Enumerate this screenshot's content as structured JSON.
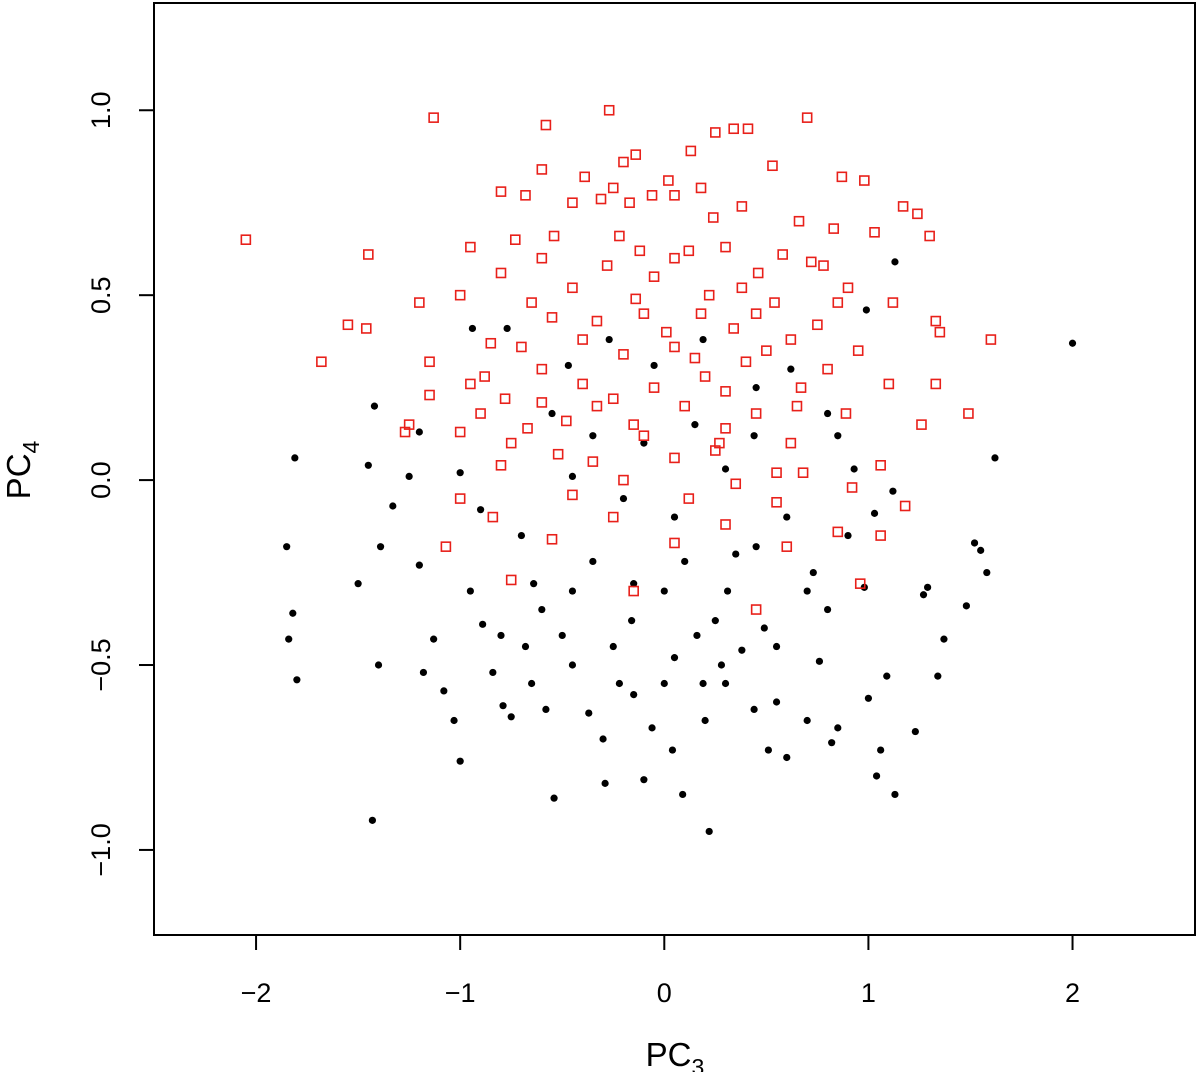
{
  "chart_data": {
    "type": "scatter",
    "title": "",
    "xlabel": {
      "base": "PC",
      "sub": "3"
    },
    "ylabel": {
      "base": "PC",
      "sub": "4"
    },
    "xlim": [
      -2.5,
      2.6
    ],
    "ylim": [
      -1.23,
      1.29
    ],
    "x_ticks": [
      -2,
      -1,
      0,
      1,
      2
    ],
    "x_tick_labels": [
      "−2",
      "−1",
      "0",
      "1",
      "2"
    ],
    "y_ticks": [
      -1.0,
      -0.5,
      0.0,
      0.5,
      1.0
    ],
    "y_tick_labels": [
      "−1.0",
      "−0.5",
      "0.0",
      "0.5",
      "1.0"
    ],
    "grid": false,
    "legend": "none",
    "series": [
      {
        "marker": "filled-circle",
        "color": "#000000",
        "points": [
          [
            2.0,
            0.37
          ],
          [
            1.13,
            0.59
          ],
          [
            1.62,
            0.06
          ],
          [
            1.58,
            -0.25
          ],
          [
            1.55,
            -0.19
          ],
          [
            1.52,
            -0.17
          ],
          [
            1.48,
            -0.34
          ],
          [
            1.37,
            -0.43
          ],
          [
            1.34,
            -0.53
          ],
          [
            1.29,
            -0.29
          ],
          [
            1.27,
            -0.31
          ],
          [
            1.23,
            -0.68
          ],
          [
            1.13,
            -0.85
          ],
          [
            1.09,
            -0.53
          ],
          [
            1.06,
            -0.73
          ],
          [
            1.04,
            -0.8
          ],
          [
            1.0,
            -0.59
          ],
          [
            0.99,
            0.46
          ],
          [
            0.98,
            -0.29
          ],
          [
            0.93,
            0.03
          ],
          [
            0.85,
            -0.67
          ],
          [
            0.82,
            -0.71
          ],
          [
            0.8,
            0.18
          ],
          [
            0.76,
            -0.49
          ],
          [
            0.73,
            -0.25
          ],
          [
            0.7,
            -0.65
          ],
          [
            0.6,
            -0.75
          ],
          [
            0.55,
            -0.6
          ],
          [
            0.51,
            -0.73
          ],
          [
            0.49,
            -0.4
          ],
          [
            0.44,
            -0.62
          ],
          [
            0.38,
            -0.46
          ],
          [
            0.31,
            -0.3
          ],
          [
            0.28,
            -0.5
          ],
          [
            0.22,
            -0.95
          ],
          [
            0.19,
            -0.55
          ],
          [
            0.16,
            -0.42
          ],
          [
            0.09,
            -0.85
          ],
          [
            0.04,
            -0.73
          ],
          [
            0.0,
            -0.55
          ],
          [
            -0.06,
            -0.67
          ],
          [
            -0.1,
            -0.81
          ],
          [
            -0.16,
            -0.38
          ],
          [
            -0.22,
            -0.55
          ],
          [
            -0.29,
            -0.82
          ],
          [
            -0.37,
            -0.63
          ],
          [
            -0.45,
            -0.5
          ],
          [
            -0.54,
            -0.86
          ],
          [
            -0.58,
            -0.62
          ],
          [
            -0.64,
            -0.28
          ],
          [
            -0.68,
            -0.45
          ],
          [
            -0.75,
            -0.64
          ],
          [
            -0.79,
            -0.61
          ],
          [
            -0.84,
            -0.52
          ],
          [
            -0.89,
            -0.39
          ],
          [
            -0.95,
            -0.3
          ],
          [
            -1.0,
            -0.76
          ],
          [
            -1.03,
            -0.65
          ],
          [
            -1.08,
            -0.57
          ],
          [
            -1.13,
            -0.43
          ],
          [
            -1.18,
            -0.52
          ],
          [
            -1.2,
            -0.23
          ],
          [
            -1.25,
            0.01
          ],
          [
            -1.33,
            -0.07
          ],
          [
            -1.39,
            -0.18
          ],
          [
            -1.4,
            -0.5
          ],
          [
            -1.43,
            -0.92
          ],
          [
            -1.45,
            0.04
          ],
          [
            -1.5,
            -0.28
          ],
          [
            -1.8,
            -0.54
          ],
          [
            -1.82,
            -0.36
          ],
          [
            -1.84,
            -0.43
          ],
          [
            -1.85,
            -0.18
          ],
          [
            -1.81,
            0.06
          ],
          [
            -1.42,
            0.2
          ],
          [
            -1.2,
            0.13
          ],
          [
            -0.94,
            0.41
          ],
          [
            -0.77,
            0.41
          ],
          [
            -0.47,
            0.31
          ],
          [
            -0.27,
            0.38
          ],
          [
            -0.05,
            0.31
          ],
          [
            0.19,
            0.38
          ],
          [
            0.44,
            0.12
          ],
          [
            0.62,
            0.3
          ],
          [
            0.85,
            0.12
          ],
          [
            1.03,
            -0.09
          ],
          [
            1.12,
            -0.03
          ],
          [
            0.3,
            0.03
          ],
          [
            0.05,
            -0.1
          ],
          [
            -0.2,
            -0.05
          ],
          [
            -0.45,
            0.01
          ],
          [
            -0.7,
            -0.15
          ],
          [
            -0.9,
            -0.08
          ],
          [
            0.6,
            -0.1
          ],
          [
            0.8,
            -0.35
          ],
          [
            0.45,
            -0.18
          ],
          [
            0.1,
            -0.22
          ],
          [
            -0.15,
            -0.28
          ],
          [
            -0.35,
            -0.22
          ],
          [
            -0.6,
            -0.35
          ],
          [
            -0.8,
            -0.42
          ],
          [
            0.25,
            -0.38
          ],
          [
            0.0,
            -0.3
          ],
          [
            -0.25,
            -0.45
          ],
          [
            -0.5,
            -0.42
          ],
          [
            0.35,
            -0.2
          ],
          [
            0.7,
            -0.3
          ],
          [
            0.15,
            0.15
          ],
          [
            -0.1,
            0.1
          ],
          [
            -0.35,
            0.12
          ],
          [
            0.45,
            0.25
          ],
          [
            -0.55,
            0.18
          ],
          [
            0.9,
            -0.15
          ],
          [
            -1.0,
            0.02
          ],
          [
            0.2,
            -0.65
          ],
          [
            -0.3,
            -0.7
          ],
          [
            0.55,
            -0.45
          ],
          [
            -0.65,
            -0.55
          ],
          [
            0.05,
            -0.48
          ],
          [
            -0.45,
            -0.3
          ],
          [
            0.3,
            -0.55
          ],
          [
            -0.15,
            -0.58
          ]
        ]
      },
      {
        "marker": "open-square",
        "color": "#e8201a",
        "points": [
          [
            -0.27,
            1.0
          ],
          [
            -1.13,
            0.98
          ],
          [
            0.7,
            0.98
          ],
          [
            -0.58,
            0.96
          ],
          [
            0.41,
            0.95
          ],
          [
            0.34,
            0.95
          ],
          [
            0.25,
            0.94
          ],
          [
            0.13,
            0.89
          ],
          [
            -0.14,
            0.88
          ],
          [
            -0.2,
            0.86
          ],
          [
            0.53,
            0.85
          ],
          [
            0.87,
            0.82
          ],
          [
            -0.6,
            0.84
          ],
          [
            0.98,
            0.81
          ],
          [
            -0.39,
            0.82
          ],
          [
            0.02,
            0.81
          ],
          [
            -0.25,
            0.79
          ],
          [
            0.18,
            0.79
          ],
          [
            -0.8,
            0.78
          ],
          [
            -0.68,
            0.77
          ],
          [
            -0.06,
            0.77
          ],
          [
            0.05,
            0.77
          ],
          [
            -0.31,
            0.76
          ],
          [
            -0.17,
            0.75
          ],
          [
            1.17,
            0.74
          ],
          [
            1.24,
            0.72
          ],
          [
            0.83,
            0.68
          ],
          [
            0.66,
            0.7
          ],
          [
            0.24,
            0.71
          ],
          [
            0.38,
            0.74
          ],
          [
            -0.45,
            0.75
          ],
          [
            -0.54,
            0.66
          ],
          [
            1.3,
            0.66
          ],
          [
            1.03,
            0.67
          ],
          [
            -2.05,
            0.65
          ],
          [
            -0.95,
            0.63
          ],
          [
            -0.73,
            0.65
          ],
          [
            -0.22,
            0.66
          ],
          [
            -0.12,
            0.62
          ],
          [
            0.3,
            0.63
          ],
          [
            0.58,
            0.61
          ],
          [
            0.72,
            0.59
          ],
          [
            -1.45,
            0.61
          ],
          [
            -0.6,
            0.6
          ],
          [
            -0.28,
            0.58
          ],
          [
            0.05,
            0.6
          ],
          [
            0.46,
            0.56
          ],
          [
            0.78,
            0.58
          ],
          [
            -0.8,
            0.56
          ],
          [
            -0.45,
            0.52
          ],
          [
            -0.14,
            0.49
          ],
          [
            0.22,
            0.5
          ],
          [
            0.54,
            0.48
          ],
          [
            0.9,
            0.52
          ],
          [
            1.12,
            0.48
          ],
          [
            -1.0,
            0.5
          ],
          [
            -1.2,
            0.48
          ],
          [
            -0.55,
            0.44
          ],
          [
            -0.33,
            0.43
          ],
          [
            0.01,
            0.4
          ],
          [
            0.34,
            0.41
          ],
          [
            0.62,
            0.38
          ],
          [
            1.33,
            0.43
          ],
          [
            1.35,
            0.4
          ],
          [
            -1.55,
            0.42
          ],
          [
            -1.46,
            0.41
          ],
          [
            -1.68,
            0.32
          ],
          [
            1.6,
            0.38
          ],
          [
            -0.7,
            0.36
          ],
          [
            -0.2,
            0.34
          ],
          [
            0.15,
            0.33
          ],
          [
            0.5,
            0.35
          ],
          [
            0.8,
            0.3
          ],
          [
            -1.15,
            0.32
          ],
          [
            -0.88,
            0.28
          ],
          [
            -0.4,
            0.26
          ],
          [
            -0.05,
            0.25
          ],
          [
            0.3,
            0.24
          ],
          [
            0.67,
            0.25
          ],
          [
            1.1,
            0.26
          ],
          [
            1.33,
            0.26
          ],
          [
            -1.15,
            0.23
          ],
          [
            -0.78,
            0.22
          ],
          [
            -0.33,
            0.2
          ],
          [
            0.1,
            0.2
          ],
          [
            0.45,
            0.18
          ],
          [
            0.89,
            0.18
          ],
          [
            1.49,
            0.18
          ],
          [
            -1.25,
            0.15
          ],
          [
            -1.0,
            0.13
          ],
          [
            -0.67,
            0.14
          ],
          [
            -0.1,
            0.12
          ],
          [
            0.27,
            0.1
          ],
          [
            0.62,
            0.1
          ],
          [
            1.26,
            0.15
          ],
          [
            -1.27,
            0.13
          ],
          [
            -0.52,
            0.07
          ],
          [
            0.05,
            0.06
          ],
          [
            0.68,
            0.02
          ],
          [
            1.06,
            0.04
          ],
          [
            -0.8,
            0.04
          ],
          [
            -0.2,
            0.0
          ],
          [
            0.35,
            -0.01
          ],
          [
            0.92,
            -0.02
          ],
          [
            -1.0,
            -0.05
          ],
          [
            -0.45,
            -0.04
          ],
          [
            0.12,
            -0.05
          ],
          [
            0.55,
            -0.06
          ],
          [
            1.18,
            -0.07
          ],
          [
            -0.84,
            -0.1
          ],
          [
            -0.25,
            -0.1
          ],
          [
            0.3,
            -0.12
          ],
          [
            0.85,
            -0.14
          ],
          [
            -1.07,
            -0.18
          ],
          [
            -0.55,
            -0.16
          ],
          [
            0.05,
            -0.17
          ],
          [
            0.6,
            -0.18
          ],
          [
            1.06,
            -0.15
          ],
          [
            -0.75,
            -0.27
          ],
          [
            -0.15,
            -0.3
          ],
          [
            0.45,
            -0.35
          ],
          [
            0.96,
            -0.28
          ],
          [
            -0.9,
            0.18
          ],
          [
            -0.6,
            0.3
          ],
          [
            -0.1,
            0.45
          ],
          [
            0.2,
            0.28
          ],
          [
            0.4,
            0.32
          ],
          [
            -0.35,
            0.05
          ],
          [
            0.75,
            0.42
          ],
          [
            -0.05,
            0.55
          ],
          [
            0.55,
            0.02
          ],
          [
            -0.65,
            0.48
          ],
          [
            0.12,
            0.62
          ],
          [
            0.38,
            0.52
          ],
          [
            -0.48,
            0.16
          ],
          [
            0.25,
            0.08
          ],
          [
            -0.85,
            0.37
          ],
          [
            0.95,
            0.35
          ],
          [
            -0.25,
            0.22
          ],
          [
            0.05,
            0.36
          ],
          [
            -0.15,
            0.15
          ],
          [
            0.65,
            0.2
          ],
          [
            -0.4,
            0.38
          ],
          [
            0.18,
            0.45
          ],
          [
            0.85,
            0.48
          ],
          [
            -0.75,
            0.1
          ],
          [
            0.45,
            0.45
          ],
          [
            -0.6,
            0.21
          ],
          [
            0.3,
            0.14
          ],
          [
            -0.95,
            0.26
          ]
        ]
      }
    ]
  }
}
